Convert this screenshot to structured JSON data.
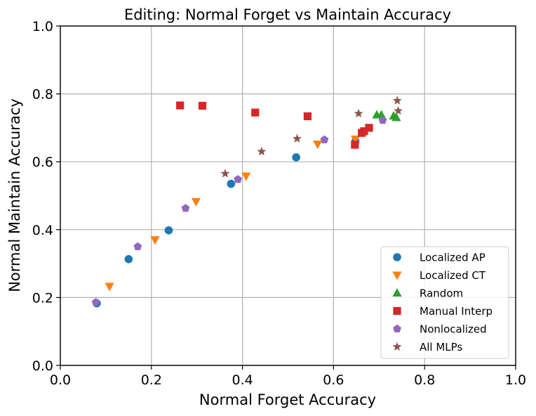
{
  "chart_data": {
    "type": "scatter",
    "title": "Editing: Normal Forget vs Maintain Accuracy",
    "xlabel": "Normal Forget Accuracy",
    "ylabel": "Normal Maintain Accuracy",
    "xlim": [
      0.0,
      1.0
    ],
    "ylim": [
      0.0,
      1.0
    ],
    "xticks": [
      "0.0",
      "0.2",
      "0.4",
      "0.6",
      "0.8",
      "1.0"
    ],
    "yticks": [
      "0.0",
      "0.2",
      "0.4",
      "0.6",
      "0.8",
      "1.0"
    ],
    "grid": true,
    "legend_position": "lower-right",
    "series": [
      {
        "name": "Localized AP",
        "marker": "circle",
        "color": "#1f77b4",
        "points": [
          [
            0.08,
            0.183
          ],
          [
            0.15,
            0.313
          ],
          [
            0.238,
            0.398
          ],
          [
            0.375,
            0.535
          ],
          [
            0.518,
            0.613
          ],
          [
            0.648,
            0.66
          ]
        ]
      },
      {
        "name": "Localized CT",
        "marker": "triangle-down",
        "color": "#ff7f0e",
        "points": [
          [
            0.108,
            0.233
          ],
          [
            0.208,
            0.37
          ],
          [
            0.298,
            0.483
          ],
          [
            0.408,
            0.558
          ],
          [
            0.565,
            0.652
          ],
          [
            0.648,
            0.667
          ]
        ]
      },
      {
        "name": "Random",
        "marker": "triangle-up",
        "color": "#2ca02c",
        "points": [
          [
            0.695,
            0.738
          ],
          [
            0.705,
            0.738
          ],
          [
            0.732,
            0.735
          ],
          [
            0.738,
            0.73
          ]
        ]
      },
      {
        "name": "Manual Interp",
        "marker": "square",
        "color": "#d62728",
        "points": [
          [
            0.263,
            0.766
          ],
          [
            0.312,
            0.765
          ],
          [
            0.428,
            0.745
          ],
          [
            0.543,
            0.734
          ],
          [
            0.647,
            0.65
          ],
          [
            0.662,
            0.685
          ],
          [
            0.667,
            0.69
          ],
          [
            0.678,
            0.7
          ]
        ]
      },
      {
        "name": "Nonlocalized",
        "marker": "pentagon",
        "color": "#9467bd",
        "points": [
          [
            0.078,
            0.186
          ],
          [
            0.17,
            0.35
          ],
          [
            0.275,
            0.463
          ],
          [
            0.39,
            0.548
          ],
          [
            0.58,
            0.665
          ],
          [
            0.708,
            0.722
          ]
        ]
      },
      {
        "name": "All MLPs",
        "marker": "star",
        "color": "#8c564b",
        "points": [
          [
            0.362,
            0.565
          ],
          [
            0.442,
            0.63
          ],
          [
            0.52,
            0.668
          ],
          [
            0.655,
            0.742
          ],
          [
            0.74,
            0.78
          ],
          [
            0.742,
            0.75
          ]
        ]
      }
    ]
  }
}
